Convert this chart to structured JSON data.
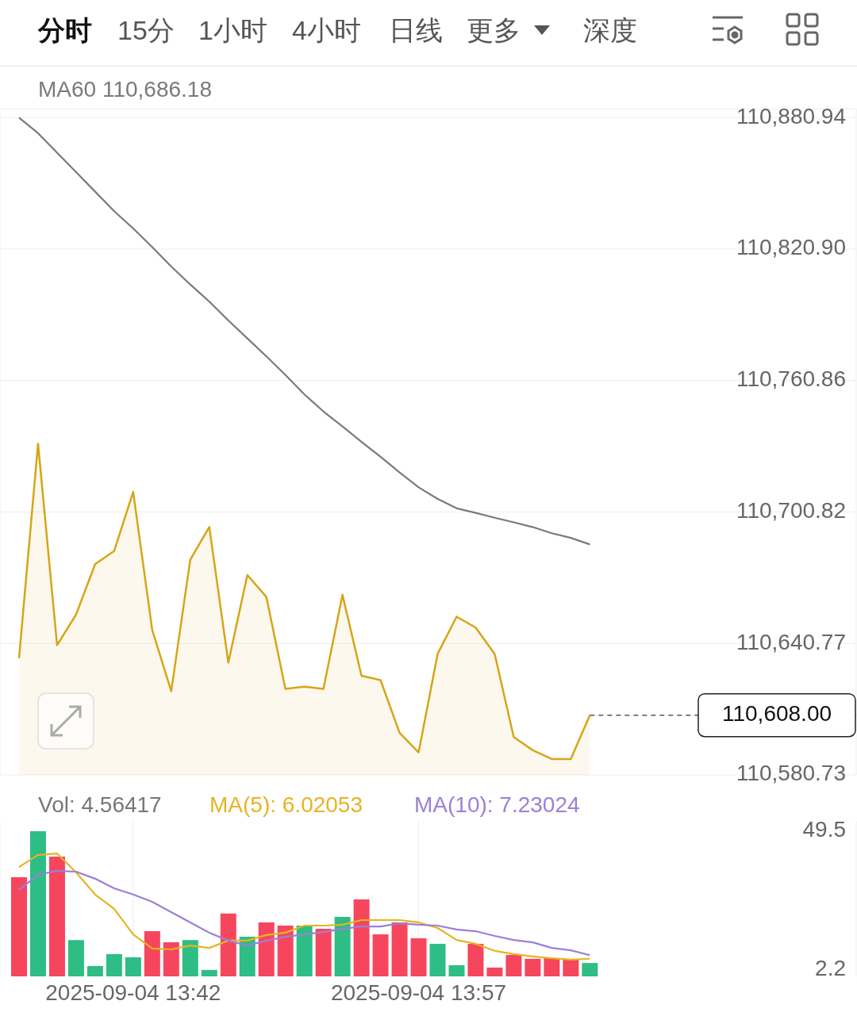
{
  "chart_data": [
    {
      "type": "area",
      "annotations": [
        "分时",
        "15分",
        "1小时",
        "4小时",
        "日线",
        "更多",
        "深度"
      ],
      "x": [
        "2025-09-04T13:36",
        "2025-09-04T13:37",
        "2025-09-04T13:38",
        "2025-09-04T13:39",
        "2025-09-04T13:40",
        "2025-09-04T13:41",
        "2025-09-04T13:42",
        "2025-09-04T13:43",
        "2025-09-04T13:44",
        "2025-09-04T13:45",
        "2025-09-04T13:46",
        "2025-09-04T13:47",
        "2025-09-04T13:48",
        "2025-09-04T13:49",
        "2025-09-04T13:50",
        "2025-09-04T13:51",
        "2025-09-04T13:52",
        "2025-09-04T13:53",
        "2025-09-04T13:54",
        "2025-09-04T13:55",
        "2025-09-04T13:56",
        "2025-09-04T13:57",
        "2025-09-04T13:58",
        "2025-09-04T13:59",
        "2025-09-04T14:00",
        "2025-09-04T14:01",
        "2025-09-04T14:02",
        "2025-09-04T14:03",
        "2025-09-04T14:04",
        "2025-09-04T14:05",
        "2025-09-04T14:06"
      ],
      "xlim": [
        "2025-09-04T13:35",
        "2025-09-04T14:20"
      ],
      "xticks": [
        {
          "value": "2025-09-04T13:42",
          "label": null
        },
        {
          "value": "2025-09-04T13:57",
          "label": null
        }
      ],
      "ylim": [
        110580.73,
        110885
      ],
      "yticks": [
        {
          "value": 110580.73,
          "label": "110,580.73"
        },
        {
          "value": 110640.77,
          "label": "110,640.77"
        },
        {
          "value": 110700.82,
          "label": "110,700.82"
        },
        {
          "value": 110760.86,
          "label": "110,760.86"
        },
        {
          "value": 110820.9,
          "label": "110,820.90"
        },
        {
          "value": 110880.94,
          "label": "110,880.94"
        }
      ],
      "tick_labels": "y",
      "grid": true,
      "legend": "top left",
      "ref_lines": [
        {
          "axis": "y",
          "value": 110608,
          "label": "110,608.00",
          "line_style": "dashed",
          "color": "#555555"
        }
      ],
      "series": [
        {
          "color": "#d6a518",
          "values": [
            110634,
            110732,
            110640,
            110654,
            110677,
            110683,
            110710,
            110647,
            110619,
            110679,
            110694,
            110632,
            110672,
            110662,
            110620,
            110621,
            110620,
            110663,
            110626,
            110624,
            110600,
            110591,
            110636,
            110653,
            110648,
            110636,
            110598,
            110592,
            110588,
            110588,
            110608
          ]
        },
        {
          "name": "MA60 110,686.18",
          "type": "line",
          "color": "#7a7a7a",
          "values": [
            110880.9,
            110873.8,
            110864.9,
            110856,
            110847.1,
            110838.2,
            110830.3,
            110821.8,
            110812.9,
            110804.7,
            110796.9,
            110788.3,
            110780.1,
            110771.9,
            110763.4,
            110754.5,
            110746.7,
            110739.9,
            110732.8,
            110726,
            110718.9,
            110712.1,
            110706.8,
            110702.5,
            110700.4,
            110698.2,
            110696.1,
            110693.9,
            110691.1,
            110689,
            110686
          ]
        }
      ]
    },
    {
      "type": "bar",
      "x": [
        "2025-09-04T13:36",
        "2025-09-04T13:37",
        "2025-09-04T13:38",
        "2025-09-04T13:39",
        "2025-09-04T13:40",
        "2025-09-04T13:41",
        "2025-09-04T13:42",
        "2025-09-04T13:43",
        "2025-09-04T13:44",
        "2025-09-04T13:45",
        "2025-09-04T13:46",
        "2025-09-04T13:47",
        "2025-09-04T13:48",
        "2025-09-04T13:49",
        "2025-09-04T13:50",
        "2025-09-04T13:51",
        "2025-09-04T13:52",
        "2025-09-04T13:53",
        "2025-09-04T13:54",
        "2025-09-04T13:55",
        "2025-09-04T13:56",
        "2025-09-04T13:57",
        "2025-09-04T13:58",
        "2025-09-04T13:59",
        "2025-09-04T14:00",
        "2025-09-04T14:01",
        "2025-09-04T14:02",
        "2025-09-04T14:03",
        "2025-09-04T14:04",
        "2025-09-04T14:05",
        "2025-09-04T14:06"
      ],
      "xlim": [
        "2025-09-04T13:35",
        "2025-09-04T14:20"
      ],
      "xticks": [
        {
          "value": "2025-09-04T13:42",
          "label": "2025-09-04 13:42"
        },
        {
          "value": "2025-09-04T13:57",
          "label": "2025-09-04 13:57"
        }
      ],
      "ylim": [
        0,
        53
      ],
      "yticks": [
        2.2,
        49.5
      ],
      "grid": "x",
      "legend": "top left",
      "series": [
        {
          "name": "Vol: 4.56417",
          "colors": [
            "#f6465d",
            "#2ebd85",
            "#f6465d",
            "#2ebd85",
            "#2ebd85",
            "#2ebd85",
            "#2ebd85",
            "#f6465d",
            "#f6465d",
            "#2ebd85",
            "#2ebd85",
            "#f6465d",
            "#2ebd85",
            "#f6465d",
            "#f6465d",
            "#2ebd85",
            "#f6465d",
            "#2ebd85",
            "#f6465d",
            "#f6465d",
            "#f6465d",
            "#f6465d",
            "#2ebd85",
            "#2ebd85",
            "#f6465d",
            "#f6465d",
            "#f6465d",
            "#f6465d",
            "#f6465d",
            "#f6465d",
            "#2ebd85"
          ],
          "values": [
            33.8,
            49.5,
            40.8,
            12.4,
            3.5,
            7.6,
            6.5,
            15.4,
            11.6,
            12.4,
            2.2,
            21.4,
            13.5,
            18.4,
            17.3,
            17.3,
            16.2,
            20.3,
            26.2,
            14.3,
            18.4,
            13,
            11.1,
            3.8,
            11.1,
            3,
            7.3,
            6,
            6.2,
            5.7,
            4.56
          ]
        },
        {
          "name": "MA(5): 6.02053",
          "type": "line",
          "color": "#e6b422",
          "values": [
            37.3,
            41.4,
            41.9,
            35.4,
            27.9,
            23,
            14.3,
            9.5,
            9.2,
            10.5,
            9.7,
            12.2,
            12.2,
            14.1,
            14.9,
            17.3,
            17.3,
            17.6,
            19.2,
            19.2,
            19.2,
            18.4,
            16.5,
            12.4,
            11.1,
            8.7,
            7.6,
            6.8,
            6.2,
            5.7,
            6.02
          ]
        },
        {
          "name": "MA(10): 7.23024",
          "type": "line",
          "color": "#9c7fd8",
          "values": [
            29.5,
            34.6,
            36,
            35.7,
            33.3,
            30,
            27.9,
            25.4,
            21.9,
            18.4,
            14.9,
            12.2,
            10.5,
            12.2,
            13.5,
            14.3,
            15.1,
            16.2,
            17,
            17,
            18.1,
            17.6,
            17.3,
            16,
            15.4,
            13.8,
            12.4,
            11.6,
            9.7,
            8.9,
            7.23
          ]
        }
      ]
    }
  ]
}
